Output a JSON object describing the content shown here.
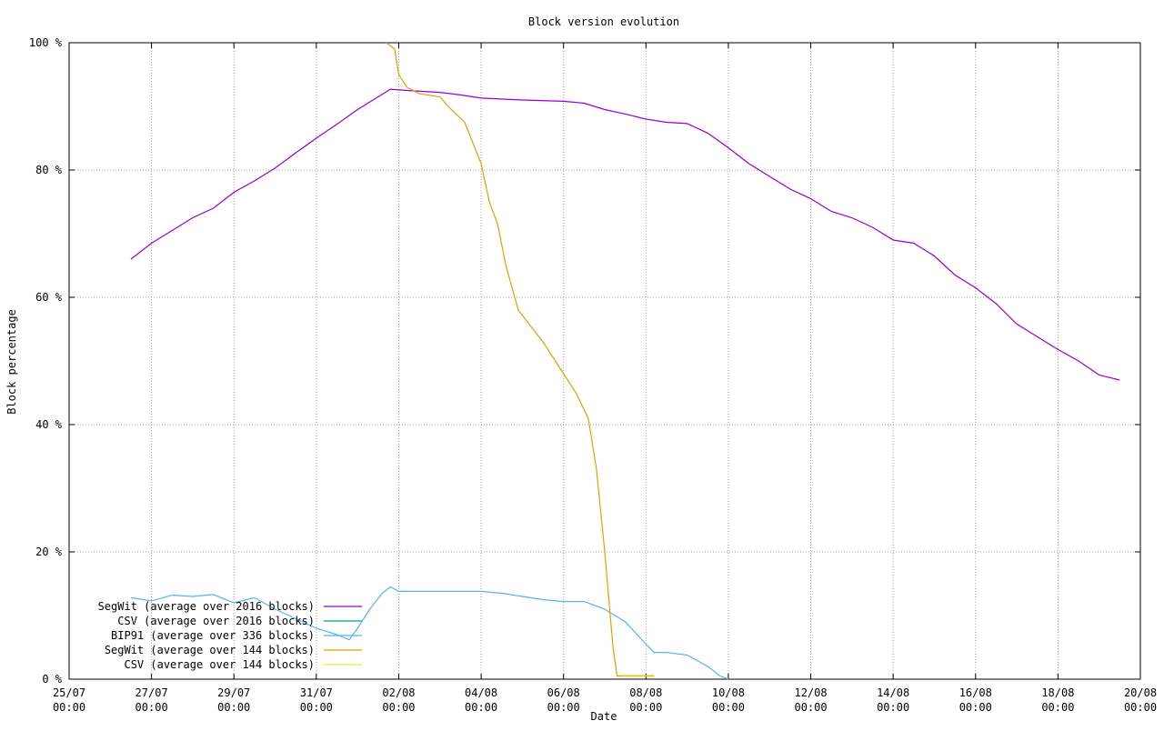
{
  "chart_data": {
    "type": "line",
    "title": "Block version evolution",
    "xlabel": "Date",
    "ylabel": "Block percentage",
    "xlim": [
      0,
      26
    ],
    "ylim": [
      0,
      100
    ],
    "grid": true,
    "legend_position": "bottom-left",
    "x_ticks": [
      {
        "x": 0,
        "line1": "25/07",
        "line2": "00:00"
      },
      {
        "x": 2,
        "line1": "27/07",
        "line2": "00:00"
      },
      {
        "x": 4,
        "line1": "29/07",
        "line2": "00:00"
      },
      {
        "x": 6,
        "line1": "31/07",
        "line2": "00:00"
      },
      {
        "x": 8,
        "line1": "02/08",
        "line2": "00:00"
      },
      {
        "x": 10,
        "line1": "04/08",
        "line2": "00:00"
      },
      {
        "x": 12,
        "line1": "06/08",
        "line2": "00:00"
      },
      {
        "x": 14,
        "line1": "08/08",
        "line2": "00:00"
      },
      {
        "x": 16,
        "line1": "10/08",
        "line2": "00:00"
      },
      {
        "x": 18,
        "line1": "12/08",
        "line2": "00:00"
      },
      {
        "x": 20,
        "line1": "14/08",
        "line2": "00:00"
      },
      {
        "x": 22,
        "line1": "16/08",
        "line2": "00:00"
      },
      {
        "x": 24,
        "line1": "18/08",
        "line2": "00:00"
      },
      {
        "x": 26,
        "line1": "20/08",
        "line2": "00:00"
      }
    ],
    "y_ticks": [
      {
        "y": 0,
        "label": "0 %"
      },
      {
        "y": 20,
        "label": "20 %"
      },
      {
        "y": 40,
        "label": "40 %"
      },
      {
        "y": 60,
        "label": "60 %"
      },
      {
        "y": 80,
        "label": "80 %"
      },
      {
        "y": 100,
        "label": "100 %"
      }
    ],
    "x_unit": "days since 25/07 00:00",
    "series": [
      {
        "name": "SegWit (average over 2016 blocks)",
        "color": "#9400d3",
        "points": [
          [
            1.5,
            66.0
          ],
          [
            2.0,
            68.5
          ],
          [
            2.5,
            70.5
          ],
          [
            3.0,
            72.5
          ],
          [
            3.5,
            74.0
          ],
          [
            4.0,
            76.5
          ],
          [
            4.5,
            78.3
          ],
          [
            5.0,
            80.3
          ],
          [
            5.5,
            82.7
          ],
          [
            6.0,
            85.0
          ],
          [
            6.5,
            87.2
          ],
          [
            7.0,
            89.5
          ],
          [
            7.5,
            91.5
          ],
          [
            7.8,
            92.7
          ],
          [
            8.2,
            92.5
          ],
          [
            9.0,
            92.2
          ],
          [
            9.5,
            91.8
          ],
          [
            10.0,
            91.3
          ],
          [
            11.0,
            91.0
          ],
          [
            12.0,
            90.8
          ],
          [
            12.5,
            90.5
          ],
          [
            13.0,
            89.5
          ],
          [
            13.5,
            88.8
          ],
          [
            14.0,
            88.0
          ],
          [
            14.5,
            87.5
          ],
          [
            15.0,
            87.3
          ],
          [
            15.5,
            85.8
          ],
          [
            16.0,
            83.5
          ],
          [
            16.5,
            81.0
          ],
          [
            17.0,
            79.0
          ],
          [
            17.5,
            77.0
          ],
          [
            18.0,
            75.5
          ],
          [
            18.5,
            73.5
          ],
          [
            19.0,
            72.5
          ],
          [
            19.5,
            71.0
          ],
          [
            20.0,
            69.0
          ],
          [
            20.5,
            68.5
          ],
          [
            21.0,
            66.5
          ],
          [
            21.5,
            63.5
          ],
          [
            22.0,
            61.5
          ],
          [
            22.5,
            59.0
          ],
          [
            23.0,
            55.8
          ],
          [
            23.5,
            53.8
          ],
          [
            24.0,
            51.8
          ],
          [
            24.5,
            50.0
          ],
          [
            25.0,
            47.8
          ],
          [
            25.5,
            47.0
          ]
        ]
      },
      {
        "name": "CSV (average over 2016 blocks)",
        "color": "#009e73",
        "points": []
      },
      {
        "name": "BIP91 (average over 336 blocks)",
        "color": "#56b4e9",
        "points": [
          [
            1.5,
            12.8
          ],
          [
            2.0,
            12.3
          ],
          [
            2.5,
            13.2
          ],
          [
            3.0,
            13.0
          ],
          [
            3.5,
            13.3
          ],
          [
            4.0,
            12.0
          ],
          [
            4.5,
            12.8
          ],
          [
            5.0,
            11.0
          ],
          [
            5.5,
            9.5
          ],
          [
            6.0,
            8.0
          ],
          [
            6.5,
            7.0
          ],
          [
            6.8,
            6.2
          ],
          [
            7.0,
            8.0
          ],
          [
            7.3,
            11.0
          ],
          [
            7.6,
            13.5
          ],
          [
            7.8,
            14.5
          ],
          [
            8.0,
            13.8
          ],
          [
            9.0,
            13.8
          ],
          [
            10.0,
            13.8
          ],
          [
            10.5,
            13.5
          ],
          [
            11.0,
            13.0
          ],
          [
            11.5,
            12.5
          ],
          [
            12.0,
            12.2
          ],
          [
            12.5,
            12.2
          ],
          [
            13.0,
            11.0
          ],
          [
            13.5,
            9.0
          ],
          [
            14.0,
            5.5
          ],
          [
            14.2,
            4.2
          ],
          [
            14.5,
            4.2
          ],
          [
            15.0,
            3.8
          ],
          [
            15.5,
            2.0
          ],
          [
            15.8,
            0.5
          ],
          [
            16.0,
            0.0
          ]
        ]
      },
      {
        "name": "SegWit (average over 144 blocks)",
        "color": "#e69f00",
        "points": [
          [
            7.7,
            100.0
          ],
          [
            7.9,
            99.0
          ],
          [
            8.0,
            95.0
          ],
          [
            8.2,
            93.0
          ],
          [
            8.5,
            92.0
          ],
          [
            9.0,
            91.5
          ],
          [
            9.2,
            90.0
          ],
          [
            9.6,
            87.5
          ],
          [
            10.0,
            81.0
          ],
          [
            10.2,
            75.0
          ],
          [
            10.4,
            71.5
          ],
          [
            10.6,
            65.0
          ],
          [
            10.9,
            58.0
          ],
          [
            11.2,
            55.5
          ],
          [
            11.5,
            53.0
          ],
          [
            12.0,
            48.0
          ],
          [
            12.3,
            45.0
          ],
          [
            12.6,
            41.0
          ],
          [
            12.8,
            33.0
          ],
          [
            13.0,
            20.0
          ],
          [
            13.2,
            5.0
          ],
          [
            13.3,
            0.5
          ],
          [
            13.5,
            0.5
          ],
          [
            14.2,
            0.5
          ]
        ]
      },
      {
        "name": "CSV (average over 144 blocks)",
        "color": "#f0e442",
        "points": [
          [
            13.4,
            0.6
          ],
          [
            14.2,
            0.6
          ]
        ]
      }
    ]
  }
}
